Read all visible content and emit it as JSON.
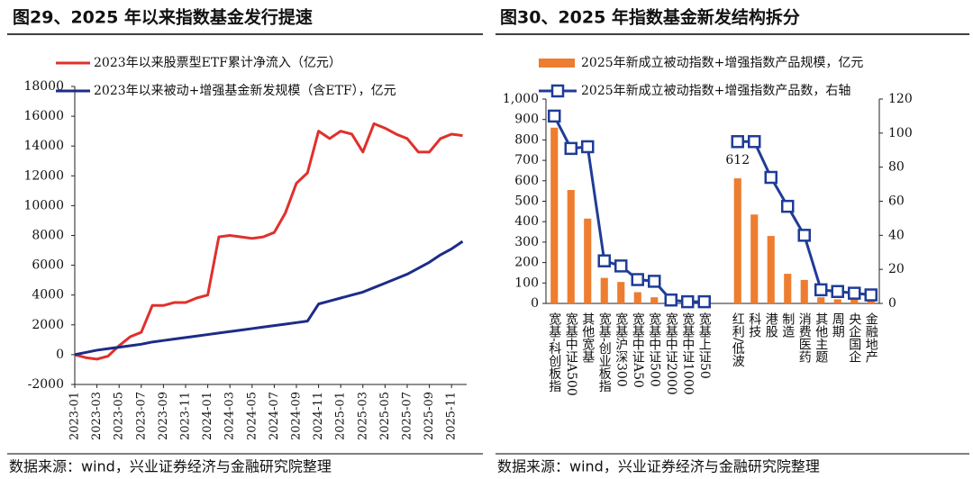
{
  "chart_data": [
    {
      "type": "line",
      "title": "图29、2025 年以来指数基金发行提速",
      "source": "数据来源：wind，兴业证券经济与金融研究院整理",
      "categories": [
        "2023-01",
        null,
        "2023-03",
        null,
        "2023-05",
        null,
        "2023-07",
        null,
        "2023-09",
        null,
        "2023-11",
        null,
        "2024-01",
        null,
        "2024-03",
        null,
        "2024-05",
        null,
        "2024-07",
        null,
        "2024-09",
        null,
        "2024-11",
        null,
        "2025-01",
        null,
        "2025-03",
        null,
        "2025-05",
        null,
        "2025-07",
        null,
        "2025-09",
        null,
        "2025-11",
        null
      ],
      "series": [
        {
          "name": "2023年以来股票型ETF累计净流入（亿元）",
          "color": "#e0302c",
          "values": [
            0,
            -200,
            -300,
            -100,
            600,
            1200,
            1500,
            3300,
            3300,
            3500,
            3500,
            3800,
            4000,
            7900,
            8000,
            7900,
            7800,
            7900,
            8200,
            9500,
            11500,
            12200,
            15000,
            14500,
            15000,
            14800,
            13600,
            15500,
            15200,
            14800,
            14500,
            13600,
            13600,
            14500,
            14800,
            14700
          ]
        },
        {
          "name": "2023年以来被动+增强基金新发规模（含ETF），亿元",
          "color": "#1c2c87",
          "values": [
            0,
            150,
            300,
            400,
            500,
            600,
            700,
            850,
            950,
            1050,
            1150,
            1250,
            1350,
            1450,
            1550,
            1650,
            1750,
            1850,
            1950,
            2050,
            2150,
            2250,
            3400,
            3600,
            3800,
            4000,
            4200,
            4500,
            4800,
            5100,
            5400,
            5800,
            6200,
            6700,
            7100,
            7600
          ]
        }
      ],
      "ylim": [
        -2000,
        18000
      ],
      "yticks": [
        -2000,
        0,
        2000,
        4000,
        6000,
        8000,
        10000,
        12000,
        14000,
        16000,
        18000
      ],
      "grid": false,
      "legend": "top-left"
    },
    {
      "type": "bar",
      "title": "图30、2025 年指数基金新发结构拆分",
      "source": "数据来源：wind，兴业证券经济与金融研究院整理",
      "categories": [
        "宽基-科创板指",
        "宽基中证A500",
        "其他宽基",
        "宽基-创业板指",
        "宽基沪深300",
        "宽基中证A50",
        "宽基中证500",
        "宽基中证2000",
        "宽基中证1000",
        "宽基上证50",
        null,
        "红利/低波",
        "科技",
        "港股",
        "制造",
        "消费医药",
        "其他主题",
        "周期",
        "央企国企",
        "金融地产"
      ],
      "series": [
        {
          "name": "2025年新成立被动指数+增强指数产品规模，亿元",
          "color": "#ed7d31",
          "type": "bar",
          "values": [
            860,
            555,
            415,
            125,
            105,
            55,
            30,
            8,
            3,
            3,
            null,
            612,
            435,
            330,
            145,
            115,
            30,
            20,
            20,
            15
          ],
          "value_labels": [
            null,
            null,
            null,
            null,
            null,
            null,
            null,
            null,
            null,
            null,
            null,
            "612",
            null,
            null,
            null,
            null,
            null,
            null,
            null,
            null
          ]
        },
        {
          "name": "2025年新成立被动指数+增强指数产品数，右轴",
          "color": "#1f3c96",
          "type": "line",
          "axis": "y2",
          "values": [
            110,
            91,
            92,
            25,
            22,
            14,
            13,
            2,
            1,
            1,
            null,
            95,
            95,
            74,
            57,
            40,
            8,
            7,
            6,
            5
          ]
        }
      ],
      "ylim": [
        0,
        1000
      ],
      "yticks": [
        0,
        100,
        200,
        300,
        400,
        500,
        600,
        700,
        800,
        900,
        {
          "value": 1000,
          "label": "1,000"
        }
      ],
      "y2lim": [
        0,
        120
      ],
      "y2ticks": [
        0,
        20,
        40,
        60,
        80,
        100,
        120
      ],
      "grid": false,
      "legend": "top"
    }
  ]
}
